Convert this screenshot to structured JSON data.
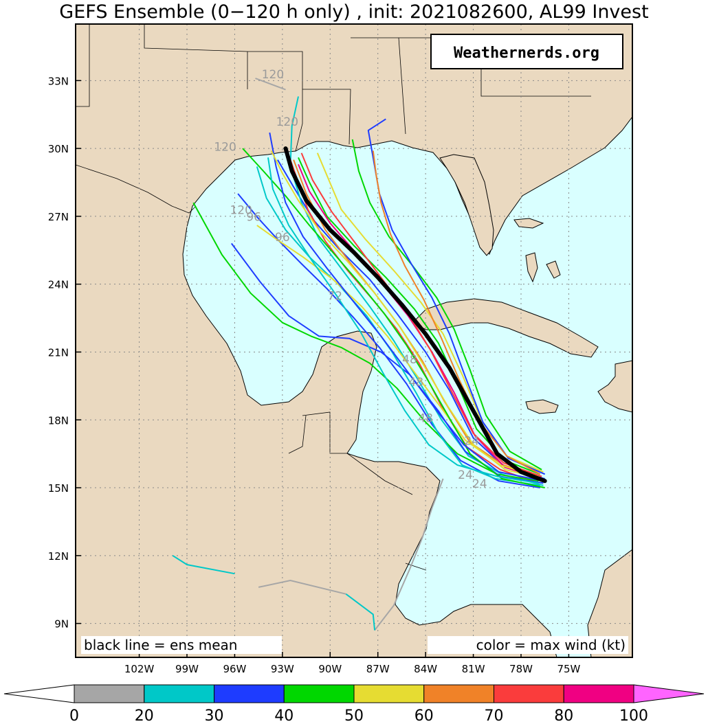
{
  "title": "GEFS Ensemble (0−120 h only) , init: 2021082600, AL99 Invest",
  "brand": "Weathernerds.org",
  "note_left": "black line = ens mean",
  "note_right": "color = max wind (kt)",
  "colors": {
    "ocean": "#d9ffff",
    "land": "#ead9c0",
    "mean": "#000000",
    "hour_label": "#9a9a9a"
  },
  "map_extent": {
    "lon": [
      -106,
      -71
    ],
    "lat": [
      7.5,
      35.5
    ]
  },
  "lat_ticks": [
    {
      "lat": 33,
      "label": "33N"
    },
    {
      "lat": 30,
      "label": "30N"
    },
    {
      "lat": 27,
      "label": "27N"
    },
    {
      "lat": 24,
      "label": "24N"
    },
    {
      "lat": 21,
      "label": "21N"
    },
    {
      "lat": 18,
      "label": "18N"
    },
    {
      "lat": 15,
      "label": "15N"
    },
    {
      "lat": 12,
      "label": "12N"
    },
    {
      "lat": 9,
      "label": "9N"
    }
  ],
  "lon_ticks": [
    {
      "lon": -102,
      "label": "102W"
    },
    {
      "lon": -99,
      "label": "99W"
    },
    {
      "lon": -96,
      "label": "96W"
    },
    {
      "lon": -93,
      "label": "93W"
    },
    {
      "lon": -90,
      "label": "90W"
    },
    {
      "lon": -87,
      "label": "87W"
    },
    {
      "lon": -84,
      "label": "84W"
    },
    {
      "lon": -81,
      "label": "81W"
    },
    {
      "lon": -78,
      "label": "78W"
    },
    {
      "lon": -75,
      "label": "75W"
    }
  ],
  "colorbar": {
    "ticks": [
      "0",
      "20",
      "30",
      "40",
      "50",
      "60",
      "70",
      "80",
      "100"
    ],
    "bins": [
      {
        "range": "0-20",
        "color": "#a6a6a6"
      },
      {
        "range": "20-30",
        "color": "#00c8c8"
      },
      {
        "range": "30-40",
        "color": "#1e3cff"
      },
      {
        "range": "40-50",
        "color": "#00d700"
      },
      {
        "range": "50-60",
        "color": "#e6dc32"
      },
      {
        "range": "60-70",
        "color": "#f08228"
      },
      {
        "range": "70-80",
        "color": "#fa3c3c"
      },
      {
        "range": "80-100",
        "color": "#f00082"
      }
    ],
    "low_extend": "#ffffff",
    "high_extend": "#ff64ff"
  },
  "ensemble_mean": [
    [
      -76.5,
      15.3
    ],
    [
      -78,
      15.7
    ],
    [
      -79.5,
      16.5
    ],
    [
      -81,
      18.4
    ],
    [
      -82.5,
      20.3
    ],
    [
      -84,
      21.8
    ],
    [
      -85.5,
      23.1
    ],
    [
      -87,
      24.3
    ],
    [
      -88.5,
      25.4
    ],
    [
      -90,
      26.4
    ],
    [
      -91.5,
      27.7
    ],
    [
      -92.4,
      29.0
    ],
    [
      -92.8,
      30.0
    ]
  ],
  "members": [
    {
      "color": "#1e3cff",
      "points": [
        [
          -76.5,
          15.4
        ],
        [
          -79,
          15.9
        ],
        [
          -81,
          17.2
        ],
        [
          -82.5,
          19.3
        ],
        [
          -84,
          21.0
        ],
        [
          -85.8,
          22.7
        ],
        [
          -87.5,
          24.2
        ],
        [
          -89.5,
          25.6
        ],
        [
          -91,
          26.8
        ],
        [
          -92.3,
          28.3
        ],
        [
          -93.3,
          29.5
        ]
      ]
    },
    {
      "color": "#00c8c8",
      "points": [
        [
          -76.6,
          15.1
        ],
        [
          -79.2,
          15.6
        ],
        [
          -81.3,
          16.4
        ],
        [
          -83,
          18.0
        ],
        [
          -84.5,
          19.8
        ],
        [
          -86,
          21.5
        ],
        [
          -87.5,
          23.0
        ],
        [
          -89.2,
          24.6
        ],
        [
          -90.7,
          26.0
        ],
        [
          -91.8,
          27.6
        ],
        [
          -92.5,
          29.2
        ],
        [
          -92.4,
          31.0
        ],
        [
          -92.0,
          32.3
        ]
      ]
    },
    {
      "color": "#00d700",
      "points": [
        [
          -76.8,
          15.6
        ],
        [
          -79,
          16.2
        ],
        [
          -80.8,
          17.6
        ],
        [
          -82,
          19.6
        ],
        [
          -83.2,
          21.4
        ],
        [
          -84.7,
          22.9
        ],
        [
          -86.5,
          24.3
        ],
        [
          -88.5,
          25.7
        ],
        [
          -90.2,
          27.0
        ],
        [
          -91.3,
          28.5
        ],
        [
          -92.0,
          29.6
        ]
      ]
    },
    {
      "color": "#f08228",
      "points": [
        [
          -76.7,
          15.5
        ],
        [
          -79.1,
          16.0
        ],
        [
          -81.2,
          17.0
        ],
        [
          -82.8,
          18.8
        ],
        [
          -84.2,
          20.6
        ],
        [
          -85.7,
          22.2
        ],
        [
          -87.2,
          23.6
        ],
        [
          -88.8,
          25.0
        ],
        [
          -90.3,
          26.4
        ],
        [
          -91.5,
          28.0
        ],
        [
          -92.3,
          29.5
        ]
      ]
    },
    {
      "color": "#fa3c3c",
      "points": [
        [
          -76.9,
          15.2
        ],
        [
          -79.3,
          15.8
        ],
        [
          -81.4,
          16.8
        ],
        [
          -83,
          18.6
        ],
        [
          -84.4,
          20.5
        ],
        [
          -85.8,
          22.0
        ],
        [
          -87.3,
          23.3
        ],
        [
          -88.9,
          24.6
        ],
        [
          -90.3,
          25.9
        ],
        [
          -91.4,
          27.3
        ],
        [
          -92.2,
          28.9
        ],
        [
          -92.6,
          29.7
        ]
      ]
    },
    {
      "color": "#e6dc32",
      "points": [
        [
          -76.6,
          15.7
        ],
        [
          -78.9,
          16.4
        ],
        [
          -80.5,
          18.0
        ],
        [
          -81.7,
          20.0
        ],
        [
          -82.9,
          21.8
        ],
        [
          -84.3,
          23.2
        ],
        [
          -86.0,
          24.6
        ],
        [
          -87.8,
          26.0
        ],
        [
          -89.3,
          27.3
        ],
        [
          -90.2,
          28.8
        ],
        [
          -90.8,
          29.8
        ]
      ]
    },
    {
      "color": "#1e3cff",
      "points": [
        [
          -76.8,
          15.0
        ],
        [
          -79.4,
          15.3
        ],
        [
          -81.8,
          16.2
        ],
        [
          -83.6,
          17.8
        ],
        [
          -85.2,
          19.6
        ],
        [
          -86.9,
          21.2
        ],
        [
          -88.5,
          22.5
        ],
        [
          -90.2,
          23.8
        ],
        [
          -91.8,
          24.9
        ],
        [
          -93.2,
          25.9
        ],
        [
          -94.5,
          26.9
        ],
        [
          -95.8,
          28.0
        ]
      ]
    },
    {
      "color": "#00d700",
      "points": [
        [
          -76.9,
          15.3
        ],
        [
          -79.5,
          15.6
        ],
        [
          -82,
          16.5
        ],
        [
          -84,
          17.9
        ],
        [
          -85.8,
          19.4
        ],
        [
          -87.5,
          20.5
        ],
        [
          -89.3,
          21.2
        ],
        [
          -91.2,
          21.7
        ],
        [
          -93,
          22.3
        ],
        [
          -95,
          23.6
        ],
        [
          -96.8,
          25.3
        ],
        [
          -98.6,
          27.6
        ]
      ]
    },
    {
      "color": "#1e3cff",
      "points": [
        [
          -76.6,
          15.2
        ],
        [
          -79.3,
          15.5
        ],
        [
          -81.5,
          16.6
        ],
        [
          -83.2,
          18.4
        ],
        [
          -85.0,
          20.0
        ],
        [
          -86.8,
          21.0
        ],
        [
          -88.8,
          21.6
        ],
        [
          -90.7,
          21.7
        ],
        [
          -92.6,
          22.6
        ],
        [
          -94.4,
          24.1
        ],
        [
          -96.2,
          25.8
        ]
      ]
    },
    {
      "color": "#00d700",
      "points": [
        [
          -76.7,
          15.8
        ],
        [
          -78.7,
          16.6
        ],
        [
          -80.2,
          18.2
        ],
        [
          -81.2,
          20.2
        ],
        [
          -82.2,
          22.0
        ],
        [
          -83.3,
          23.4
        ],
        [
          -84.8,
          24.8
        ],
        [
          -86.3,
          26.1
        ],
        [
          -87.5,
          27.6
        ],
        [
          -88.2,
          29.0
        ],
        [
          -88.6,
          30.4
        ]
      ]
    },
    {
      "color": "#00c8c8",
      "points": [
        [
          -76.8,
          15.1
        ],
        [
          -79.6,
          15.4
        ],
        [
          -81.7,
          16.0
        ],
        [
          -83.2,
          17.4
        ],
        [
          -84.6,
          19.2
        ],
        [
          -86.1,
          21.0
        ],
        [
          -87.7,
          22.6
        ],
        [
          -89.5,
          24.0
        ],
        [
          -91.3,
          25.2
        ],
        [
          -92.8,
          26.4
        ],
        [
          -94.0,
          27.8
        ],
        [
          -94.6,
          29.2
        ]
      ]
    },
    {
      "color": "#1e3cff",
      "points": [
        [
          -76.5,
          15.6
        ],
        [
          -78.8,
          16.3
        ],
        [
          -80.4,
          17.9
        ],
        [
          -81.5,
          19.9
        ],
        [
          -82.5,
          21.8
        ],
        [
          -83.6,
          23.4
        ],
        [
          -84.9,
          24.9
        ],
        [
          -86.1,
          26.4
        ],
        [
          -86.9,
          28.0
        ],
        [
          -87.3,
          29.6
        ],
        [
          -87.6,
          30.8
        ],
        [
          -86.5,
          31.3
        ]
      ]
    },
    {
      "color": "#f00082",
      "points": [
        [
          -76.7,
          15.4
        ],
        [
          -79.0,
          15.9
        ],
        [
          -80.9,
          17.3
        ],
        [
          -82.2,
          19.2
        ],
        [
          -83.6,
          21.0
        ],
        [
          -85.1,
          22.6
        ],
        [
          -86.7,
          24.0
        ],
        [
          -88.4,
          25.4
        ],
        [
          -90.0,
          26.7
        ],
        [
          -91.3,
          28.1
        ],
        [
          -92.0,
          29.3
        ]
      ]
    },
    {
      "color": "#e6dc32",
      "points": [
        [
          -76.9,
          15.5
        ],
        [
          -79.3,
          16.0
        ],
        [
          -81.5,
          17.1
        ],
        [
          -83.2,
          18.7
        ],
        [
          -84.8,
          20.2
        ],
        [
          -86.4,
          21.7
        ],
        [
          -88.0,
          23.0
        ],
        [
          -89.8,
          24.2
        ],
        [
          -91.7,
          25.2
        ],
        [
          -93.4,
          26.0
        ],
        [
          -94.6,
          26.6
        ]
      ]
    },
    {
      "color": "#00d700",
      "points": [
        [
          -76.5,
          15.0
        ],
        [
          -79.2,
          15.4
        ],
        [
          -81.2,
          16.5
        ],
        [
          -82.6,
          18.2
        ],
        [
          -83.9,
          19.8
        ],
        [
          -85.2,
          21.3
        ],
        [
          -86.6,
          22.7
        ],
        [
          -88.1,
          24.0
        ],
        [
          -89.7,
          25.3
        ],
        [
          -91.3,
          26.6
        ],
        [
          -92.8,
          27.9
        ],
        [
          -94.2,
          29.0
        ],
        [
          -95.5,
          30.0
        ]
      ]
    },
    {
      "color": "#f08228",
      "points": [
        [
          -76.8,
          15.6
        ],
        [
          -78.9,
          16.4
        ],
        [
          -80.6,
          17.9
        ],
        [
          -81.9,
          19.8
        ],
        [
          -83.0,
          21.6
        ],
        [
          -84.1,
          23.3
        ],
        [
          -85.3,
          24.8
        ],
        [
          -86.2,
          26.2
        ],
        [
          -86.8,
          27.6
        ],
        [
          -87.1,
          28.8
        ],
        [
          -87.3,
          29.9
        ]
      ]
    },
    {
      "color": "#1e3cff",
      "points": [
        [
          -76.6,
          15.3
        ],
        [
          -79.4,
          15.7
        ],
        [
          -81.6,
          16.9
        ],
        [
          -83.4,
          18.5
        ],
        [
          -85.1,
          20.1
        ],
        [
          -86.8,
          21.7
        ],
        [
          -88.5,
          23.2
        ],
        [
          -90.2,
          24.7
        ],
        [
          -91.7,
          26.1
        ],
        [
          -92.8,
          27.6
        ],
        [
          -93.4,
          29.2
        ],
        [
          -93.8,
          30.7
        ]
      ]
    },
    {
      "color": "#fa3c3c",
      "points": [
        [
          -76.7,
          15.5
        ],
        [
          -79.1,
          16.1
        ],
        [
          -81.0,
          17.4
        ],
        [
          -82.4,
          19.3
        ],
        [
          -83.7,
          21.1
        ],
        [
          -85.2,
          22.8
        ],
        [
          -86.8,
          24.3
        ],
        [
          -88.4,
          25.8
        ],
        [
          -89.9,
          27.2
        ],
        [
          -91.1,
          28.6
        ],
        [
          -91.8,
          29.8
        ]
      ]
    },
    {
      "color": "#00c8c8",
      "points": [
        [
          -76.9,
          15.2
        ],
        [
          -79.5,
          15.5
        ],
        [
          -82.0,
          16.0
        ],
        [
          -83.8,
          16.9
        ],
        [
          -85.3,
          18.4
        ],
        [
          -86.7,
          20.1
        ],
        [
          -88.1,
          21.9
        ],
        [
          -89.6,
          23.5
        ],
        [
          -91.1,
          25.0
        ],
        [
          -92.6,
          26.6
        ],
        [
          -93.6,
          28.2
        ],
        [
          -93.9,
          29.6
        ]
      ]
    },
    {
      "color": "#e6dc32",
      "points": [
        [
          -76.6,
          15.4
        ],
        [
          -79.0,
          15.8
        ],
        [
          -81.0,
          16.9
        ],
        [
          -82.6,
          18.6
        ],
        [
          -84.1,
          20.4
        ],
        [
          -85.6,
          22.1
        ],
        [
          -87.2,
          23.6
        ],
        [
          -88.9,
          25.0
        ],
        [
          -90.6,
          26.3
        ],
        [
          -92.0,
          27.7
        ],
        [
          -93.0,
          28.9
        ],
        [
          -93.7,
          29.9
        ]
      ]
    }
  ],
  "track_120h_gray": [
    [
      -87.2,
      8.7
    ],
    [
      -86,
      9.8
    ],
    [
      -85,
      11.4
    ],
    [
      -84.2,
      12.8
    ],
    [
      -83.6,
      14.1
    ],
    [
      -82.9,
      15.4
    ],
    [
      -92.8,
      32.6
    ],
    [
      -94.7,
      33.1
    ]
  ],
  "track_other": {
    "pacific_cyan": [
      [
        -99.9,
        12.0
      ],
      [
        -99,
        11.6
      ],
      [
        -96,
        11.2
      ]
    ],
    "pacific_gray": [
      [
        -94.5,
        10.6
      ],
      [
        -92.5,
        10.9
      ],
      [
        -89,
        10.3
      ]
    ]
  },
  "hour_labels": [
    {
      "text": "120",
      "lon": -93.6,
      "lat": 33.1
    },
    {
      "text": "120",
      "lon": -92.7,
      "lat": 31.0
    },
    {
      "text": "120",
      "lon": -96.6,
      "lat": 29.9
    },
    {
      "text": "120",
      "lon": -95.6,
      "lat": 27.1
    },
    {
      "text": "96",
      "lon": -94.8,
      "lat": 26.8
    },
    {
      "text": "96",
      "lon": -93.0,
      "lat": 25.9
    },
    {
      "text": "72",
      "lon": -89.7,
      "lat": 23.3
    },
    {
      "text": "48",
      "lon": -85.0,
      "lat": 20.5
    },
    {
      "text": "48",
      "lon": -84.6,
      "lat": 19.5
    },
    {
      "text": "48",
      "lon": -84.0,
      "lat": 17.9
    },
    {
      "text": "24",
      "lon": -81.1,
      "lat": 16.9
    },
    {
      "text": "24",
      "lon": -81.5,
      "lat": 15.4
    },
    {
      "text": "24",
      "lon": -80.6,
      "lat": 15.0
    }
  ]
}
